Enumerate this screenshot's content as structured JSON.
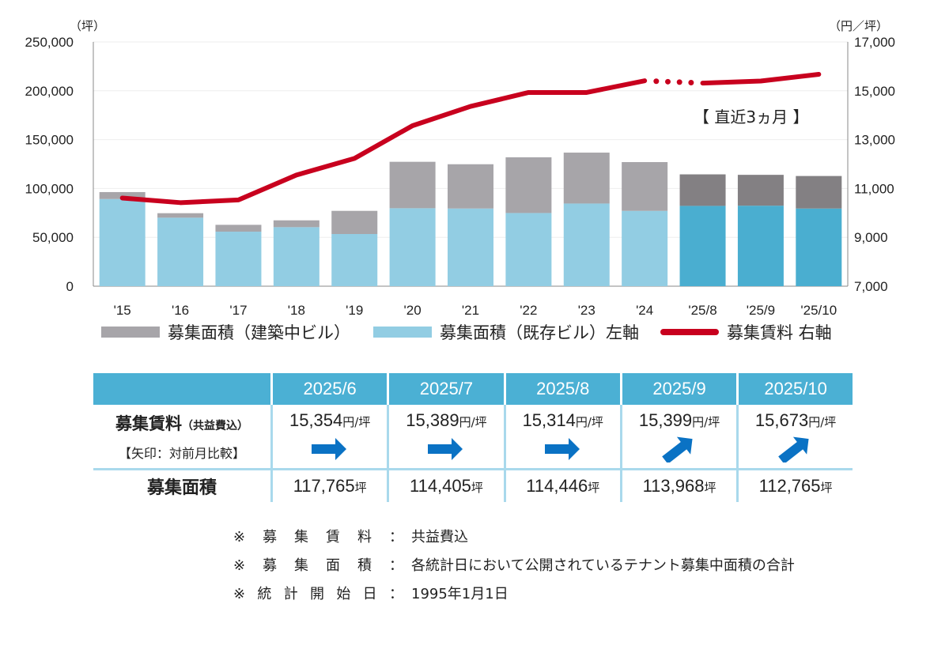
{
  "chart_data": {
    "type": "bar+line",
    "categories": [
      "'15",
      "'16",
      "'17",
      "'18",
      "'19",
      "'20",
      "'21",
      "'22",
      "'23",
      "'24",
      "'25/8",
      "'25/9",
      "'25/10"
    ],
    "left_axis": {
      "unit": "（坪）",
      "ylim": [
        0,
        250000
      ],
      "ticks": [
        "0",
        "50,000",
        "100,000",
        "150,000",
        "200,000",
        "250,000"
      ]
    },
    "right_axis": {
      "unit": "（円／坪）",
      "ylim": [
        7000,
        17000
      ],
      "ticks": [
        "7,000",
        "9,000",
        "11,000",
        "13,000",
        "15,000",
        "17,000"
      ]
    },
    "series": [
      {
        "name": "募集面積（既存ビル）左軸",
        "type": "bar-stacked",
        "color": "#92cde3",
        "recent_color": "#4aaed0",
        "values": [
          89200,
          70100,
          55800,
          60400,
          53400,
          79800,
          79500,
          74900,
          84600,
          77100,
          82200,
          82400,
          79500
        ]
      },
      {
        "name": "募集面積（建築中ビル）",
        "type": "bar-stacked",
        "color": "#a7a5a9",
        "recent_color": "#838083",
        "values": [
          7100,
          4600,
          7000,
          7000,
          23700,
          47500,
          45300,
          57000,
          52100,
          49900,
          32246,
          31568,
          33265
        ]
      },
      {
        "name": "募集賃料 右軸",
        "type": "line",
        "color": "#c8001e",
        "values": [
          10610,
          10420,
          10530,
          11550,
          12230,
          13570,
          14360,
          14930,
          14930,
          15410,
          15314,
          15399,
          15673
        ]
      }
    ],
    "annotation": "【 直近3ヵ月 】",
    "grid": true,
    "legend": "bottom"
  },
  "table": {
    "headers": [
      "2025/6",
      "2025/7",
      "2025/8",
      "2025/9",
      "2025/10"
    ],
    "rent_label": "募集賃料",
    "rent_label_sub": "（共益費込）",
    "arrow_label": "【矢印：対前月比較】",
    "rent_unit": "円/坪",
    "rents": [
      "15,354",
      "15,389",
      "15,314",
      "15,399",
      "15,673"
    ],
    "arrows": [
      "flat",
      "flat",
      "flat",
      "up",
      "up"
    ],
    "arrow_color": "#0a72c4",
    "area_label": "募集面積",
    "area_unit": "坪",
    "areas": [
      "117,765",
      "114,405",
      "114,446",
      "113,968",
      "112,765"
    ]
  },
  "notes": [
    {
      "key": [
        "募",
        "集",
        "賃",
        "料"
      ],
      "value": "共益費込"
    },
    {
      "key": [
        "募",
        "集",
        "面",
        "積"
      ],
      "value": "各統計日において公開されているテナント募集中面積の合計"
    },
    {
      "key": [
        "統",
        "計",
        "開",
        "始",
        "日"
      ],
      "value": "1995年1月1日"
    }
  ],
  "note_mark": "※",
  "note_sep": "："
}
